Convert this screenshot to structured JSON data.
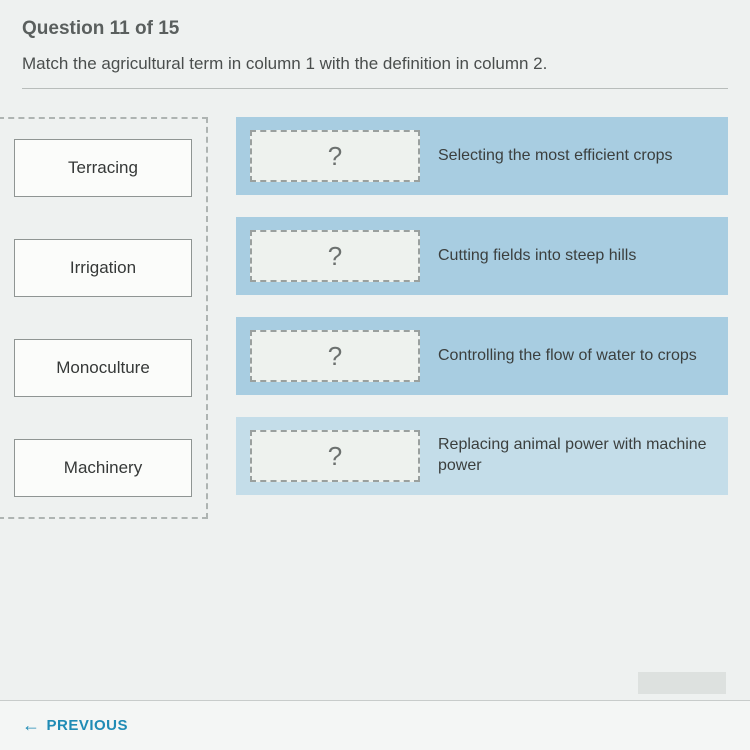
{
  "header": {
    "question_label": "Question 11 of 15",
    "instruction": "Match the agricultural term in column 1 with the definition in column 2."
  },
  "column1_terms": [
    {
      "label": "Terracing"
    },
    {
      "label": "Irrigation"
    },
    {
      "label": "Monoculture"
    },
    {
      "label": "Machinery"
    }
  ],
  "column2_rows": [
    {
      "placeholder": "?",
      "definition": "Selecting the most efficient crops"
    },
    {
      "placeholder": "?",
      "definition": "Cutting fields into steep hills"
    },
    {
      "placeholder": "?",
      "definition": "Controlling the flow of water to crops"
    },
    {
      "placeholder": "?",
      "definition": "Replacing animal power with machine power"
    }
  ],
  "nav": {
    "previous_label": "PREVIOUS",
    "arrow_glyph": "←"
  },
  "style": {
    "background_color": "#e4e9e8",
    "page_background": "#eef1f0",
    "term_border": "#8f9593",
    "dashed_border": "#aeb4b2",
    "def_row_bg": "#a8cde1",
    "def_row_bg_alt": "#c4dde9",
    "drop_slot_bg": "#eef2ee",
    "prev_link_color": "#1f8bb5",
    "header_color": "#5a5f5e",
    "text_color": "#4a4e4d",
    "fontsize_header": 19,
    "fontsize_instruction": 17,
    "fontsize_term": 17,
    "fontsize_def": 16,
    "fontsize_placeholder": 26
  }
}
